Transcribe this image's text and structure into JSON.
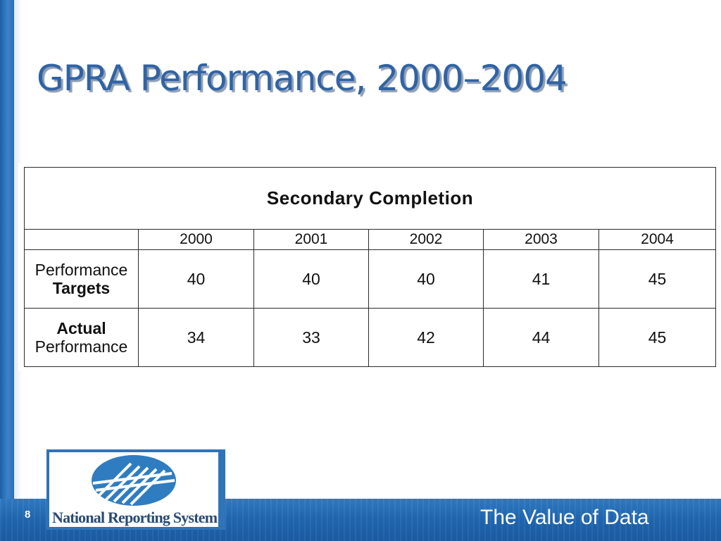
{
  "slide": {
    "title": "GPRA Performance, 2000–2004",
    "page_number": "8",
    "footer_tagline": "The Value of Data"
  },
  "logo": {
    "text": "National Reporting System"
  },
  "colors": {
    "title": "#2f63a5",
    "accent_blue": "#1f64ad",
    "logo_mark": "#2f7dc0"
  },
  "chart_data": {
    "type": "table",
    "title": "Secondary Completion",
    "columns": [
      "2000",
      "2001",
      "2002",
      "2003",
      "2004"
    ],
    "rows": [
      {
        "label_parts": [
          "Performance",
          "Targets"
        ],
        "bold_part": 1,
        "values": [
          "40",
          "40",
          "40",
          "41",
          "45"
        ]
      },
      {
        "label_parts": [
          "Actual",
          "Performance"
        ],
        "bold_part": 0,
        "values": [
          "34",
          "33",
          "42",
          "44",
          "45"
        ]
      }
    ]
  }
}
